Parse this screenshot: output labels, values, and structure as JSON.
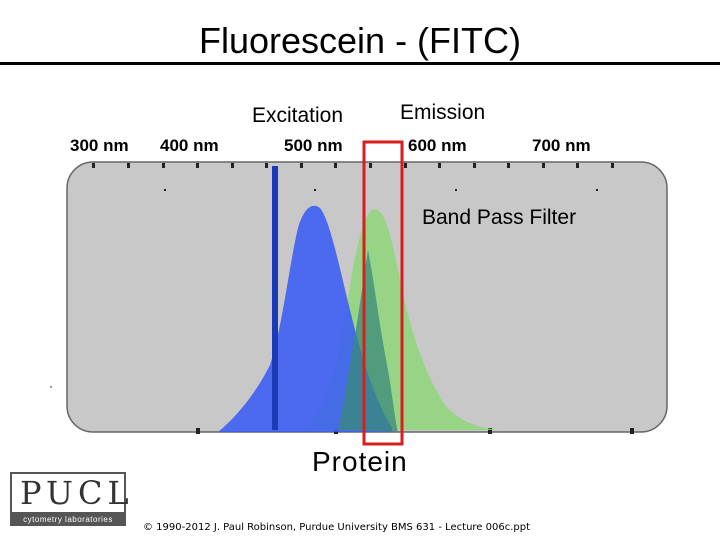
{
  "title": "Fluorescein - (FITC)",
  "labels": {
    "excitation": "Excitation",
    "emission": "Emission",
    "band_pass_filter": "Band Pass Filter",
    "protein": "Protein"
  },
  "axis_ticks": [
    "300 nm",
    "400 nm",
    "500 nm",
    "600 nm",
    "700 nm"
  ],
  "logo": {
    "text": "PUCL",
    "subtext": "cytometry laboratories"
  },
  "copyright": "© 1990-2012  J. Paul Robinson, Purdue University  BMS 631 - Lecture 006c.ppt",
  "colors": {
    "panel": "#c8c8c8",
    "excitation": "#3a5cf5",
    "emission": "#8fd67a",
    "overlap": "#3a8a7a",
    "laser_line": "#1a3bb8",
    "filter": "#d81e1e"
  }
}
